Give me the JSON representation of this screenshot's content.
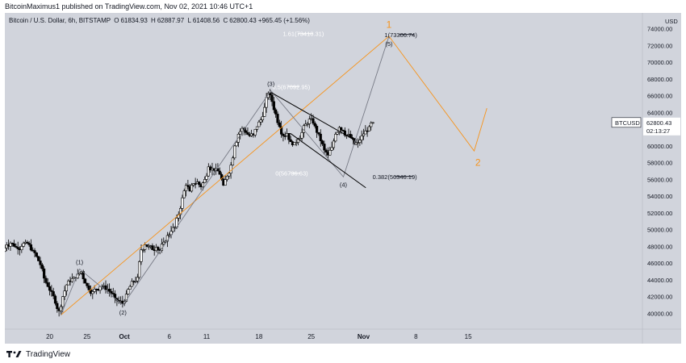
{
  "header": {
    "text": "BitcoinMaximus1 published on TradingView.com, Nov 02, 2021 10:46 UTC+1"
  },
  "legend": {
    "symbol": "Bitcoin / U.S. Dollar, 6h, BITSTAMP",
    "open": "61834.93",
    "high": "62887.97",
    "low": "61408.56",
    "close": "62800.43",
    "change": "+965.45 (+1.56%)"
  },
  "footer": {
    "brand": "TradingView"
  },
  "chart_data": {
    "type": "candlestick",
    "symbol": "BTCUSD",
    "currency": "USD",
    "ylim": [
      38500,
      75500
    ],
    "y_ticks": [
      40000,
      42000,
      44000,
      46000,
      48000,
      50000,
      52000,
      54000,
      56000,
      58000,
      60000,
      62000,
      64000,
      66000,
      68000,
      70000,
      72000,
      74000
    ],
    "y_tick_labels": [
      "40000.00",
      "42000.00",
      "44000.00",
      "46000.00",
      "48000.00",
      "50000.00",
      "52000.00",
      "54000.00",
      "56000.00",
      "58000.00",
      "60000.00",
      "62000.00",
      "64000.00",
      "66000.00",
      "68000.00",
      "70000.00",
      "72000.00",
      "74000.00"
    ],
    "x_ticks": [
      {
        "label": "20",
        "day": 20,
        "bold": false
      },
      {
        "label": "25",
        "day": 25,
        "bold": false
      },
      {
        "label": "Oct",
        "day": 30,
        "bold": true
      },
      {
        "label": "6",
        "day": 36,
        "bold": false
      },
      {
        "label": "11",
        "day": 41,
        "bold": false
      },
      {
        "label": "18",
        "day": 48,
        "bold": false
      },
      {
        "label": "25",
        "day": 55,
        "bold": false
      },
      {
        "label": "Nov",
        "day": 62,
        "bold": true
      },
      {
        "label": "8",
        "day": 69,
        "bold": false
      },
      {
        "label": "15",
        "day": 76,
        "bold": false
      }
    ],
    "current_price": {
      "label": "BTCUSD",
      "value": "62800.43",
      "countdown": "02:13:27",
      "price": 62800
    },
    "price_path": [
      [
        14.0,
        47400
      ],
      [
        14.5,
        48200
      ],
      [
        15.0,
        48400
      ],
      [
        15.5,
        48000
      ],
      [
        16.0,
        47700
      ],
      [
        16.5,
        48000
      ],
      [
        17.0,
        48500
      ],
      [
        17.5,
        48200
      ],
      [
        18.0,
        47500
      ],
      [
        18.5,
        46800
      ],
      [
        19.0,
        45800
      ],
      [
        19.5,
        44200
      ],
      [
        20.0,
        43200
      ],
      [
        20.5,
        42600
      ],
      [
        21.0,
        41200
      ],
      [
        21.5,
        40300
      ],
      [
        22.0,
        42000
      ],
      [
        22.5,
        43400
      ],
      [
        23.0,
        43800
      ],
      [
        23.5,
        44300
      ],
      [
        24.0,
        44700
      ],
      [
        24.5,
        45000
      ],
      [
        25.0,
        43600
      ],
      [
        25.5,
        42800
      ],
      [
        26.0,
        42600
      ],
      [
        26.5,
        42900
      ],
      [
        27.0,
        43200
      ],
      [
        27.5,
        43300
      ],
      [
        28.0,
        42900
      ],
      [
        28.5,
        42400
      ],
      [
        29.0,
        41800
      ],
      [
        29.5,
        41400
      ],
      [
        30.0,
        41200
      ],
      [
        30.5,
        42300
      ],
      [
        31.0,
        43200
      ],
      [
        31.5,
        43800
      ],
      [
        32.0,
        44300
      ],
      [
        32.5,
        47600
      ],
      [
        33.0,
        48200
      ],
      [
        33.5,
        48000
      ],
      [
        34.0,
        47600
      ],
      [
        34.5,
        47900
      ],
      [
        35.0,
        47500
      ],
      [
        35.5,
        48500
      ],
      [
        36.0,
        49300
      ],
      [
        36.5,
        49800
      ],
      [
        37.0,
        50300
      ],
      [
        37.5,
        51800
      ],
      [
        38.0,
        53800
      ],
      [
        38.5,
        55300
      ],
      [
        39.0,
        54600
      ],
      [
        39.5,
        55500
      ],
      [
        40.0,
        55700
      ],
      [
        40.5,
        55100
      ],
      [
        41.0,
        56000
      ],
      [
        41.5,
        57500
      ],
      [
        42.0,
        57300
      ],
      [
        42.5,
        57300
      ],
      [
        43.0,
        56600
      ],
      [
        43.5,
        55300
      ],
      [
        44.0,
        56400
      ],
      [
        44.5,
        57700
      ],
      [
        45.0,
        60000
      ],
      [
        45.5,
        61400
      ],
      [
        46.0,
        62100
      ],
      [
        46.5,
        61600
      ],
      [
        47.0,
        61200
      ],
      [
        47.5,
        61300
      ],
      [
        48.0,
        62300
      ],
      [
        48.5,
        63100
      ],
      [
        49.0,
        64600
      ],
      [
        49.5,
        66300
      ],
      [
        50.0,
        65300
      ],
      [
        50.5,
        63800
      ],
      [
        51.0,
        62300
      ],
      [
        51.5,
        61200
      ],
      [
        52.0,
        61500
      ],
      [
        52.5,
        60500
      ],
      [
        53.0,
        60400
      ],
      [
        53.5,
        60800
      ],
      [
        54.0,
        61600
      ],
      [
        54.5,
        62600
      ],
      [
        55.0,
        63200
      ],
      [
        55.5,
        62700
      ],
      [
        56.0,
        61600
      ],
      [
        56.5,
        60600
      ],
      [
        57.0,
        59500
      ],
      [
        57.5,
        58900
      ],
      [
        58.0,
        59800
      ],
      [
        58.5,
        61400
      ],
      [
        59.0,
        62200
      ],
      [
        59.5,
        61800
      ],
      [
        60.0,
        61300
      ],
      [
        60.5,
        61000
      ],
      [
        61.0,
        60200
      ],
      [
        61.5,
        60400
      ],
      [
        62.0,
        61200
      ],
      [
        62.5,
        61800
      ],
      [
        63.0,
        62300
      ],
      [
        63.5,
        62800
      ]
    ],
    "elliott_labels": [
      {
        "text": "(1)",
        "day": 24.0,
        "price": 45300,
        "pos": "above"
      },
      {
        "text": "(2)",
        "day": 29.8,
        "price": 41000,
        "pos": "below"
      },
      {
        "text": "(3)",
        "day": 49.6,
        "price": 66600,
        "pos": "above"
      },
      {
        "text": "(4)",
        "day": 59.3,
        "price": 56300,
        "pos": "below"
      },
      {
        "text": "(5)",
        "day": 65.4,
        "price": 73100,
        "pos": "below"
      }
    ],
    "wave_path": [
      [
        21.5,
        39800
      ],
      [
        24.0,
        45300
      ],
      [
        29.8,
        41000
      ],
      [
        49.6,
        66600
      ],
      [
        59.3,
        56300
      ],
      [
        65.4,
        73100
      ]
    ],
    "projection_path": [
      [
        21.5,
        39800
      ],
      [
        65.4,
        73100
      ],
      [
        76.8,
        59400
      ],
      [
        78.5,
        64500
      ]
    ],
    "projection_labels": [
      {
        "text": "1",
        "day": 65.4,
        "price": 74500
      },
      {
        "text": "2",
        "day": 77.3,
        "price": 58000
      }
    ],
    "channel": {
      "upper": [
        [
          49.6,
          66400
        ],
        [
          60.8,
          60700
        ]
      ],
      "lower": [
        [
          52.2,
          61500
        ],
        [
          62.3,
          55000
        ]
      ]
    },
    "levels": [
      {
        "label": "1.61(73410.31)",
        "price": 73410,
        "x1": 53.2,
        "x2": 55.2,
        "label_day": 51.2
      },
      {
        "label": "1(73306.74)",
        "price": 73306,
        "x1": 66.8,
        "x2": 68.8,
        "label_day": 64.8
      },
      {
        "label": "0(56736.63)",
        "price": 56736,
        "x1": 52.2,
        "x2": 53.5,
        "label_day": 50.2
      },
      {
        "label": "0.382(56346.19)",
        "price": 56346,
        "x1": 66.2,
        "x2": 68.6,
        "label_day": 63.2
      },
      {
        "label": "0.5(67092.95)",
        "price": 67092,
        "x1": 51.8,
        "x2": 53.4,
        "label_day": 49.8
      }
    ]
  },
  "colors": {
    "background": "#d1d4dc",
    "candle_body": "#ffffff",
    "candle_outline": "#000000",
    "wave_line": "#787b86",
    "projection_line": "#f7931a",
    "channel_line": "#000000",
    "price_box_bg": "#ffffff"
  }
}
